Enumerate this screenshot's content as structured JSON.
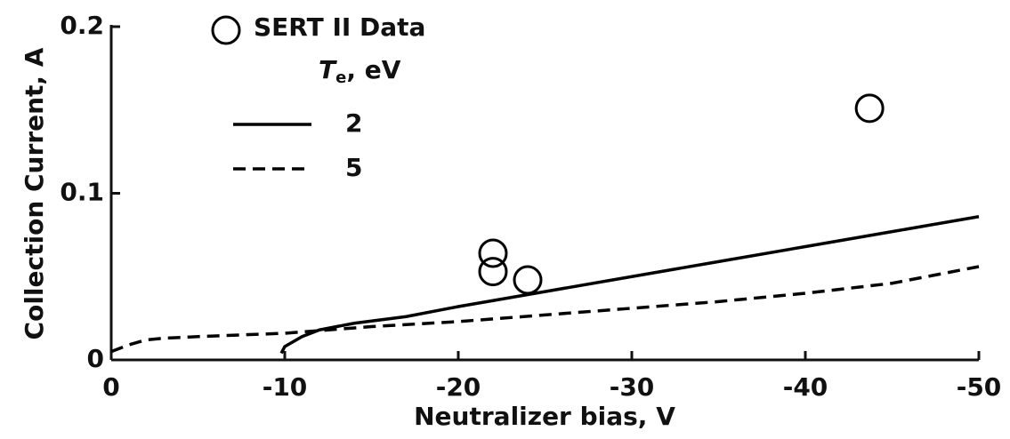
{
  "chart_data": {
    "type": "line",
    "xlabel": "Neutralizer bias, V",
    "ylabel": "Collection Current, A",
    "xlim": [
      0,
      -50
    ],
    "ylim": [
      0,
      0.2
    ],
    "xticks": [
      0,
      -10,
      -20,
      -30,
      -40,
      -50
    ],
    "yticks": [
      0,
      0.1,
      0.2
    ],
    "legend_title": [
      "T",
      "e",
      ", eV"
    ],
    "series": [
      {
        "name": "SERT II Data",
        "type": "scatter",
        "color": "#000000",
        "x": [
          -22,
          -22,
          -24,
          -43.7
        ],
        "values": [
          0.064,
          0.053,
          0.048,
          0.151
        ]
      },
      {
        "name": "2",
        "type": "line",
        "style": "solid",
        "color": "#000000",
        "x": [
          -9.8,
          -10,
          -11,
          -12,
          -14,
          -17,
          -20,
          -25,
          -30,
          -35,
          -40,
          -45,
          -50
        ],
        "values": [
          0.004,
          0.008,
          0.014,
          0.018,
          0.022,
          0.026,
          0.032,
          0.041,
          0.05,
          0.059,
          0.068,
          0.077,
          0.086
        ]
      },
      {
        "name": "5",
        "type": "line",
        "style": "dashed",
        "color": "#000000",
        "x": [
          0,
          -1,
          -2,
          -3,
          -5,
          -10,
          -15,
          -20,
          -25,
          -30,
          -35,
          -40,
          -45,
          -50
        ],
        "values": [
          0.005,
          0.009,
          0.012,
          0.013,
          0.014,
          0.016,
          0.02,
          0.023,
          0.027,
          0.031,
          0.035,
          0.04,
          0.046,
          0.056
        ]
      }
    ]
  }
}
